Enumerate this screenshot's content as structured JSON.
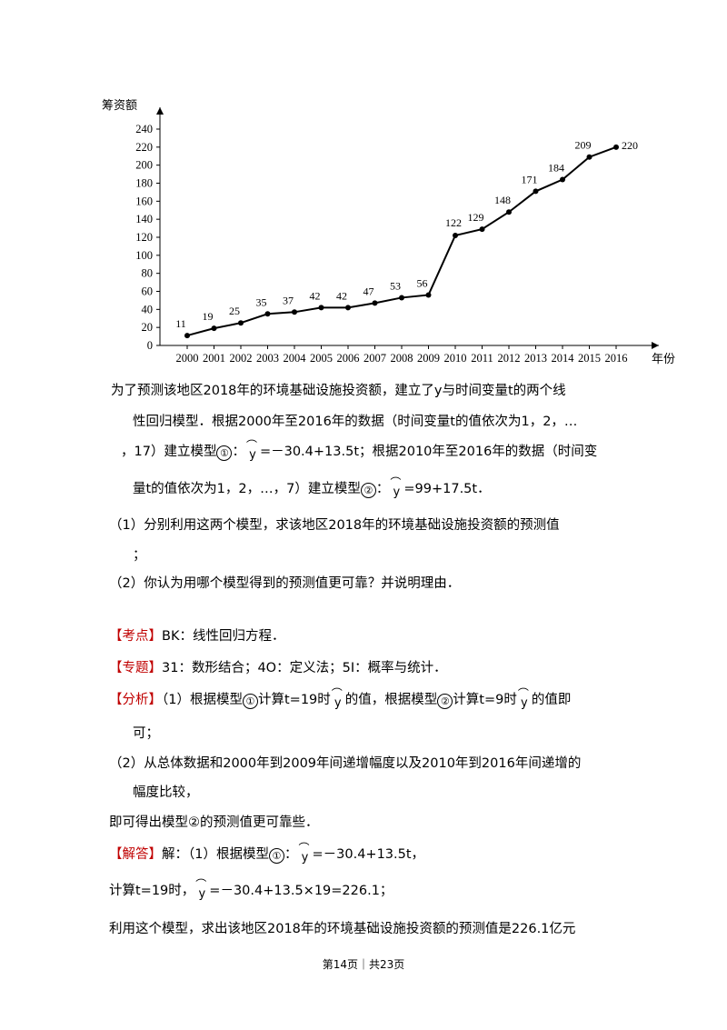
{
  "chart_data": {
    "type": "line",
    "ylabel": "筹资额",
    "xlabel": "年份",
    "categories": [
      "2000",
      "2001",
      "2002",
      "2003",
      "2004",
      "2005",
      "2006",
      "2007",
      "2008",
      "2009",
      "2010",
      "2011",
      "2012",
      "2013",
      "2014",
      "2015",
      "2016"
    ],
    "values": [
      11,
      19,
      25,
      35,
      37,
      42,
      42,
      47,
      53,
      56,
      122,
      129,
      148,
      171,
      184,
      209,
      220
    ],
    "yticks": [
      "0",
      "20",
      "40",
      "60",
      "80",
      "100",
      "120",
      "140",
      "160",
      "180",
      "200",
      "220",
      "240"
    ],
    "ylim": [
      0,
      240
    ],
    "grid": false,
    "legend": "none"
  },
  "text": {
    "intro1": "为了预测该地区2018年的环境基础设施投资额，建立了y与时间变量t的两个线",
    "intro2": "性回归模型．根据2000年至2016年的数据（时间变量t的值依次为1，2，…",
    "intro3a": "，17）建立模型",
    "c1": "①",
    "colon": "：",
    "y": "y",
    "m1eq": "=－30.4+13.5t；根据2010年至2016年的数据（时间变",
    "intro4a": "量t的值依次为1，2，…，7）建立模型",
    "c2": "②",
    "m2eq": "=99+17.5t．",
    "q1a": "（1）分别利用这两个模型，求该地区2018年的环境基础设施投资额的预测值",
    "q1b": "；",
    "q2": "（2）你认为用哪个模型得到的预测值更可靠？并说明理由．",
    "kaodian_tag": "【考点】",
    "kaodian": "BK：线性回归方程．",
    "zhuanti_tag": "【专题】",
    "zhuanti": "31：数形结合；4O：定义法；5I：概率与统计．",
    "fenxi_tag": "【分析】",
    "fx1a": "（1）根据模型",
    "fx1b": "计算t=19时",
    "fx1c": "的值，根据模型",
    "fx1d": "计算t=9时",
    "fx1e": "的值即",
    "fx1f": "可；",
    "fx2a": "（2）从总体数据和2000年到2009年间递增幅度以及2010年到2016年间递增的",
    "fx2b": "幅度比较，",
    "fx3": "即可得出模型②的预测值更可靠些．",
    "jieda_tag": "【解答】",
    "jd1a": "解：（1）根据模型",
    "jd1b": "=－30.4+13.5t，",
    "jd2a": "计算t=19时，",
    "jd2b": "=－30.4+13.5×19=226.1；",
    "jd3": "利用这个模型，求出该地区2018年的环境基础设施投资额的预测值是226.1亿元"
  },
  "footer": "第14页｜共23页"
}
